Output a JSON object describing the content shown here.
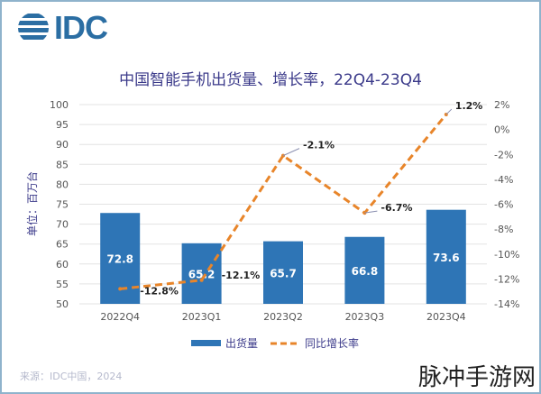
{
  "logo": {
    "text": "IDC"
  },
  "title": "中国智能手机出货量、增长率，22Q4-23Q4",
  "source": "来源：IDC中国，2024",
  "watermark": "脉冲手游网",
  "chart_data": {
    "type": "bar+line",
    "title": "中国智能手机出货量、增长率，22Q4-23Q4",
    "categories": [
      "2022Q4",
      "2023Q1",
      "2023Q2",
      "2023Q3",
      "2023Q4"
    ],
    "ylabel": "单位：百万台",
    "ylim": [
      50,
      100
    ],
    "yticks": [
      "100",
      "95",
      "90",
      "85",
      "80",
      "75",
      "70",
      "65",
      "60",
      "55",
      "50"
    ],
    "y2lim": [
      -14,
      2
    ],
    "y2ticks": [
      "2%",
      "0%",
      "-2%",
      "-4%",
      "-6%",
      "-8%",
      "-10%",
      "-12%",
      "-14%"
    ],
    "legend_position": "bottom",
    "series": [
      {
        "name": "出货量",
        "type": "bar",
        "color": "#2e75b6",
        "values": [
          72.8,
          65.2,
          65.7,
          66.8,
          73.6
        ],
        "labels": [
          "72.8",
          "65.2",
          "65.7",
          "66.8",
          "73.6"
        ]
      },
      {
        "name": "同比增长率",
        "type": "line",
        "style": "dashed",
        "color": "#e8852a",
        "values": [
          -12.8,
          -12.1,
          -2.1,
          -6.7,
          1.2
        ],
        "labels": [
          "-12.8%",
          "-12.1%",
          "-2.1%",
          "-6.7%",
          "1.2%"
        ]
      }
    ],
    "grid": true
  }
}
